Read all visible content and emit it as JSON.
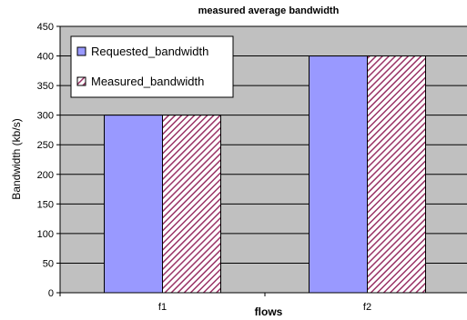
{
  "chart_data": {
    "type": "bar",
    "title": "measured average bandwidth",
    "xlabel": "flows",
    "ylabel": "Bandwidth (kb/s)",
    "categories": [
      "f1",
      "f2"
    ],
    "series": [
      {
        "name": "Requested_bandwidth",
        "values": [
          300,
          400
        ],
        "color": "#9999ff",
        "pattern": "solid"
      },
      {
        "name": "Measured_bandwidth",
        "values": [
          300,
          400
        ],
        "color": "#993366",
        "pattern": "diagonal-hatch"
      }
    ],
    "ylim": [
      0,
      450
    ],
    "yticks": [
      0,
      50,
      100,
      150,
      200,
      250,
      300,
      350,
      400,
      450
    ],
    "grid": true,
    "plot_background": "#c0c0c0",
    "legend": "top-left"
  }
}
